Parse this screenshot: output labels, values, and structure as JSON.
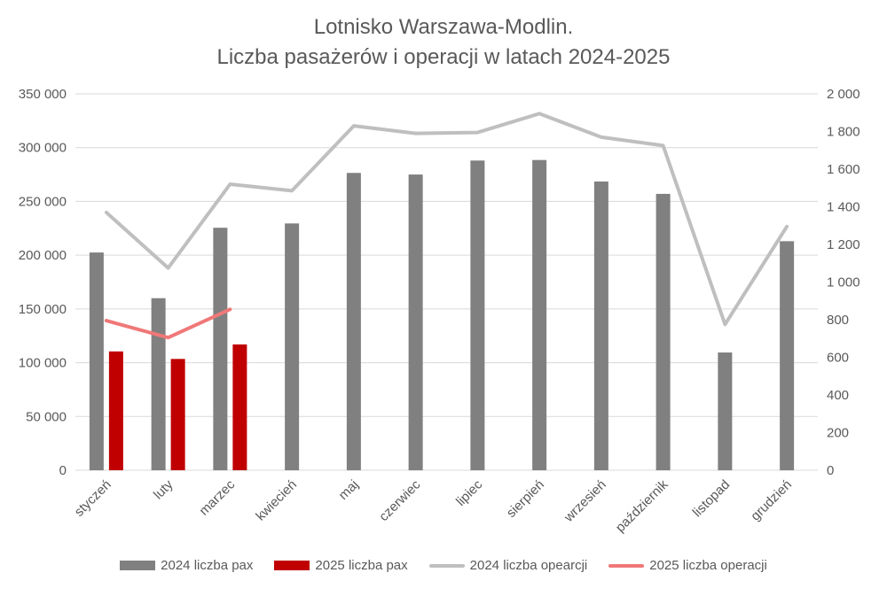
{
  "chart_data": {
    "type": "bar",
    "title": "Lotnisko Warszawa-Modlin.",
    "subtitle": "Liczba pasażerów i operacji w latach 2024-2025",
    "categories": [
      "styczeń",
      "luty",
      "marzec",
      "kwiecień",
      "maj",
      "czerwiec",
      "lipiec",
      "sierpień",
      "wrzesień",
      "październik",
      "listopad",
      "grudzień"
    ],
    "y_left": {
      "lim": [
        0,
        350000
      ],
      "ticks": [
        "0",
        "50 000",
        "100 000",
        "150 000",
        "200 000",
        "250 000",
        "300 000",
        "350 000"
      ]
    },
    "y_right": {
      "lim": [
        0,
        2000
      ],
      "ticks": [
        "0",
        "200",
        "400",
        "600",
        "800",
        "1 000",
        "1 200",
        "1 400",
        "1 600",
        "1 800",
        "2 000"
      ]
    },
    "grid": true,
    "legend_position": "bottom",
    "series": [
      {
        "name": "2024 liczba pax",
        "kind": "bar",
        "axis": "left",
        "color": "#808080",
        "values": [
          202500,
          160000,
          225500,
          229500,
          276500,
          275000,
          288000,
          288500,
          268500,
          257000,
          109500,
          213000
        ]
      },
      {
        "name": "2025 liczba pax",
        "kind": "bar",
        "axis": "left",
        "color": "#c00000",
        "values": [
          110500,
          103500,
          117000,
          null,
          null,
          null,
          null,
          null,
          null,
          null,
          null,
          null
        ]
      },
      {
        "name": "2024 liczba opearcji",
        "kind": "line",
        "axis": "right",
        "color": "#bfbfbf",
        "values": [
          1370,
          1075,
          1520,
          1485,
          1830,
          1790,
          1795,
          1895,
          1770,
          1725,
          775,
          1295
        ]
      },
      {
        "name": "2025 liczba operacji",
        "kind": "line",
        "axis": "right",
        "color": "#f07878",
        "values": [
          795,
          705,
          855,
          null,
          null,
          null,
          null,
          null,
          null,
          null,
          null,
          null
        ]
      }
    ]
  }
}
